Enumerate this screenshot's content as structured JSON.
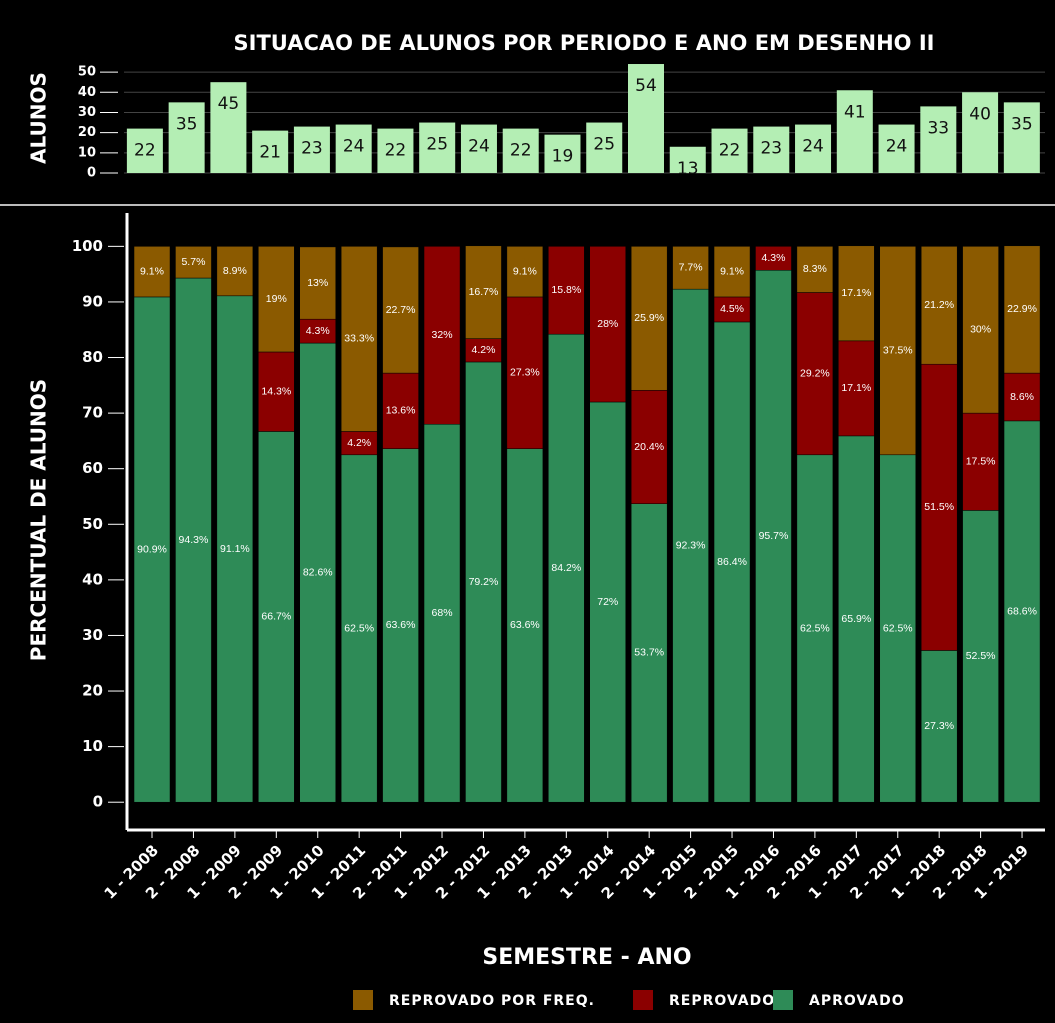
{
  "chart_data": [
    {
      "type": "bar",
      "title": "SITUACAO DE ALUNOS POR PERIODO E ANO EM DESENHO II",
      "ylabel": "ALUNOS",
      "values": [
        22,
        35,
        45,
        21,
        23,
        24,
        22,
        25,
        24,
        22,
        19,
        25,
        54,
        13,
        22,
        23,
        24,
        41,
        24,
        33,
        40,
        35
      ],
      "color": "#b4eeb4",
      "ylim": [
        0,
        55
      ],
      "yticks": [
        0,
        10,
        20,
        30,
        40,
        50
      ],
      "grid": true
    },
    {
      "type": "stacked-bar",
      "ylabel": "PERCENTUAL DE ALUNOS",
      "xlabel": "SEMESTRE - ANO",
      "categories": [
        "1 - 2008",
        "2 - 2008",
        "1 - 2009",
        "2 - 2009",
        "1 - 2010",
        "1 - 2011",
        "2 - 2011",
        "1 - 2012",
        "2 - 2012",
        "1 - 2013",
        "2 - 2013",
        "1 - 2014",
        "2 - 2014",
        "1 - 2015",
        "2 - 2015",
        "1 - 2016",
        "2 - 2016",
        "1 - 2017",
        "2 - 2017",
        "1 - 2018",
        "2 - 2018",
        "1 - 2019"
      ],
      "series": [
        {
          "name": "APROVADO",
          "color": "#2e8b57",
          "values": [
            90.9,
            94.3,
            91.1,
            66.7,
            82.6,
            62.5,
            63.6,
            68,
            79.2,
            63.6,
            84.2,
            72,
            53.7,
            92.3,
            86.4,
            95.7,
            62.5,
            65.9,
            62.5,
            27.3,
            52.5,
            68.6
          ],
          "value_labels": [
            "90.9%",
            "94.3%",
            "91.1%",
            "66.7%",
            "82.6%",
            "62.5%",
            "63.6%",
            "68%",
            "79.2%",
            "63.6%",
            "84.2%",
            "72%",
            "53.7%",
            "92.3%",
            "86.4%",
            "95.7%",
            "62.5%",
            "65.9%",
            "62.5%",
            "27.3%",
            "52.5%",
            "68.6%"
          ]
        },
        {
          "name": "REPROVADO",
          "color": "#8b0000",
          "values": [
            null,
            null,
            null,
            14.3,
            4.3,
            4.2,
            13.6,
            32,
            4.2,
            27.3,
            15.8,
            28,
            20.4,
            null,
            4.5,
            4.3,
            29.2,
            17.1,
            null,
            51.5,
            17.5,
            8.6
          ],
          "value_labels": [
            null,
            null,
            null,
            "14.3%",
            "4.3%",
            "4.2%",
            "13.6%",
            "32%",
            "4.2%",
            "27.3%",
            "15.8%",
            "28%",
            "20.4%",
            null,
            "4.5%",
            "4.3%",
            "29.2%",
            "17.1%",
            null,
            "51.5%",
            "17.5%",
            "8.6%"
          ]
        },
        {
          "name": "REPROVADO POR FREQ.",
          "color": "#8b5a00",
          "values": [
            9.1,
            5.7,
            8.9,
            19,
            13,
            33.3,
            22.7,
            null,
            16.7,
            9.1,
            null,
            null,
            25.9,
            7.7,
            9.1,
            null,
            8.3,
            17.1,
            37.5,
            21.2,
            30,
            22.9
          ],
          "value_labels": [
            "9.1%",
            "5.7%",
            "8.9%",
            "19%",
            "13%",
            "33.3%",
            "22.7%",
            null,
            "16.7%",
            "9.1%",
            null,
            null,
            "25.9%",
            "7.7%",
            "9.1%",
            null,
            "8.3%",
            "17.1%",
            "37.5%",
            "21.2%",
            "30%",
            "22.9%"
          ]
        }
      ],
      "ylim": [
        -5,
        106
      ],
      "yticks": [
        0,
        10,
        20,
        30,
        40,
        50,
        60,
        70,
        80,
        90,
        100
      ],
      "legend": "bottom"
    }
  ]
}
